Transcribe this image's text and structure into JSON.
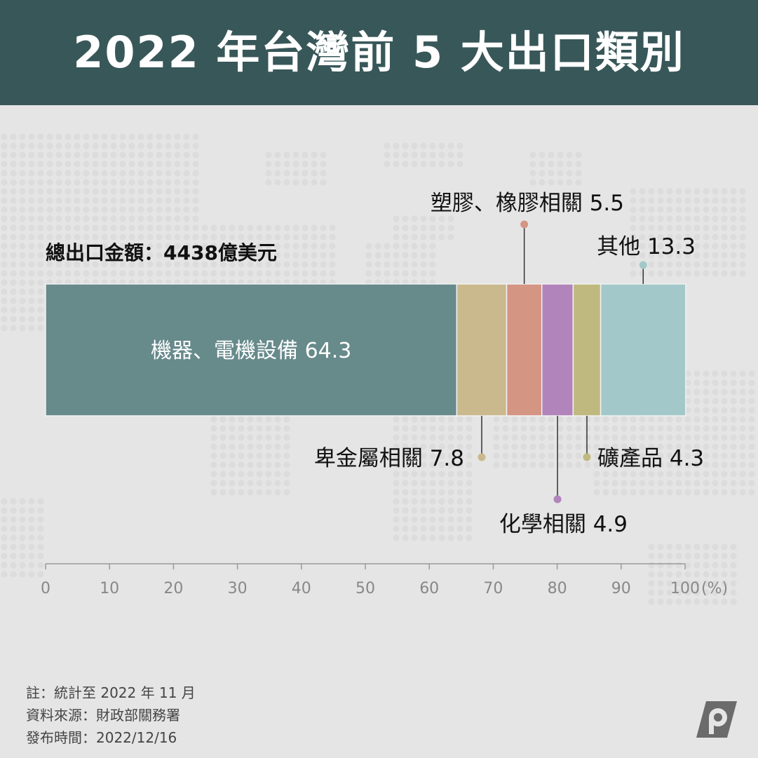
{
  "header": {
    "title": "2022 年台灣前 5 大出口類別"
  },
  "chart_data": {
    "type": "stacked-bar",
    "total_label": "總出口金額：4438億美元",
    "unit": "(%)",
    "xlim": [
      0,
      100
    ],
    "x_ticks": [
      "0",
      "10",
      "20",
      "30",
      "40",
      "50",
      "60",
      "70",
      "80",
      "90",
      "100"
    ],
    "segments": [
      {
        "name": "機器、電機設備",
        "value": 64.3,
        "label": "機器、電機設備 64.3",
        "color": "#678a8b"
      },
      {
        "name": "卑金屬相關",
        "value": 7.8,
        "label": "卑金屬相關 7.8",
        "color": "#c9b98d"
      },
      {
        "name": "塑膠、橡膠相關",
        "value": 5.5,
        "label": "塑膠、橡膠相關 5.5",
        "color": "#d49583"
      },
      {
        "name": "化學相關",
        "value": 4.9,
        "label": "化學相關 4.9",
        "color": "#b184bb"
      },
      {
        "name": "礦產品",
        "value": 4.3,
        "label": "礦產品 4.3",
        "color": "#bfb97f"
      },
      {
        "name": "其他",
        "value": 13.3,
        "label": "其他 13.3",
        "color": "#a3c8c9"
      }
    ]
  },
  "notes": {
    "note": "註：統計至 2022 年 11 月",
    "source": "資料來源：財政部關務署",
    "published": "發布時間：2022/12/16"
  },
  "logo": {
    "name": "p-logo-icon"
  }
}
